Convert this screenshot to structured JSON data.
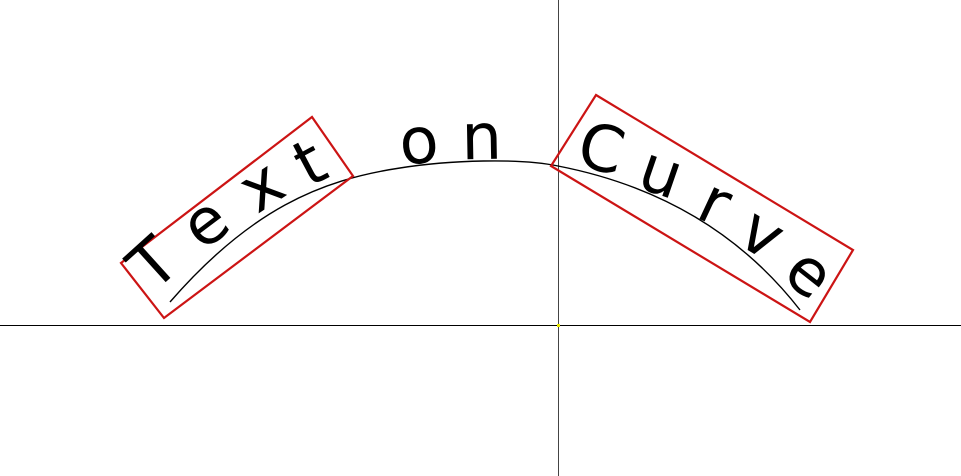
{
  "diagram": {
    "title": "Text on Curve",
    "words": [
      {
        "text": "Text",
        "boxed": true
      },
      {
        "text": "on",
        "boxed": false
      },
      {
        "text": "Curve",
        "boxed": true
      }
    ],
    "colors": {
      "background": "#ffffff",
      "axis": "#000000",
      "curve": "#000000",
      "box": "#cc1414",
      "origin": "#e8e800"
    }
  }
}
